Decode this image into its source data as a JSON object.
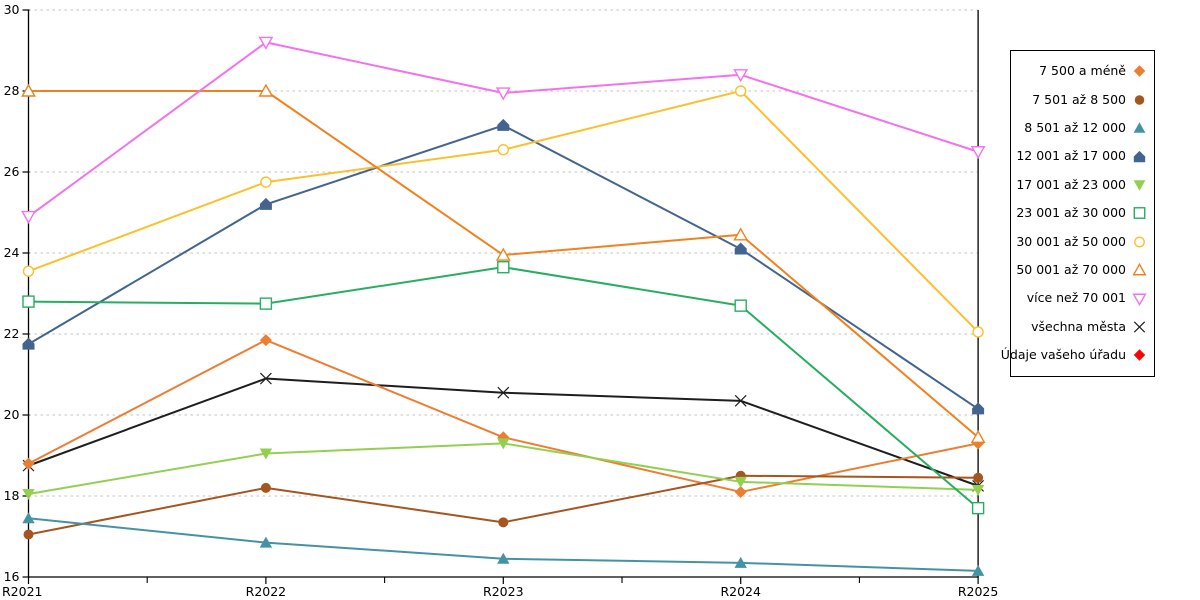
{
  "chart_data": {
    "type": "line",
    "title": "",
    "xlabel": "",
    "ylabel": "",
    "x_categories": [
      "R2021",
      "R2022",
      "R2023",
      "R2024",
      "R2025"
    ],
    "y_axis": {
      "min": 16,
      "max": 30,
      "tick_step": 2,
      "tick_labels": [
        "16",
        "18",
        "20",
        "22",
        "24",
        "26",
        "28",
        "30"
      ]
    },
    "grid": {
      "horizontal": true,
      "style": "dashed",
      "color": "#c3c3c3"
    },
    "axis_color": "#000000",
    "legend": {
      "position": "right",
      "border_color": "#000000",
      "background": "#ffffff"
    },
    "series": [
      {
        "name": "7 500 a méně",
        "color": "#ED7D31",
        "marker": "diamond",
        "marker_style": "filled",
        "values": [
          18.8,
          21.85,
          19.45,
          18.1,
          19.3
        ]
      },
      {
        "name": "7 501 až 8 500",
        "color": "#A5561E",
        "marker": "circle",
        "marker_style": "filled",
        "values": [
          17.05,
          18.2,
          17.35,
          18.5,
          18.45
        ]
      },
      {
        "name": "8 501 až 12 000",
        "color": "#4493A5",
        "marker": "triangle-up",
        "marker_style": "filled",
        "values": [
          17.45,
          16.85,
          16.45,
          16.35,
          16.15
        ]
      },
      {
        "name": "12 001 až 17 000",
        "color": "#42648F",
        "marker": "pentagon",
        "marker_style": "filled",
        "values": [
          21.75,
          25.2,
          27.15,
          24.1,
          20.15
        ]
      },
      {
        "name": "17 001 až 23 000",
        "color": "#92D050",
        "marker": "triangle-down",
        "marker_style": "filled",
        "values": [
          18.05,
          19.05,
          19.3,
          18.35,
          18.15
        ]
      },
      {
        "name": "23 001 až 30 000",
        "color": "#27AE60",
        "marker": "square",
        "marker_style": "open",
        "values": [
          22.8,
          22.75,
          23.65,
          22.7,
          17.7
        ]
      },
      {
        "name": "30 001 až 50 000",
        "color": "#FBC02D",
        "marker": "circle",
        "marker_style": "open",
        "values": [
          23.55,
          25.75,
          26.55,
          28.0,
          22.05
        ]
      },
      {
        "name": "50 001 až 70 000",
        "color": "#F0821E",
        "marker": "triangle-up",
        "marker_style": "open",
        "values": [
          28.0,
          28.0,
          23.95,
          24.45,
          19.45
        ]
      },
      {
        "name": "více než 70 001",
        "color": "#F272EC",
        "marker": "triangle-down",
        "marker_style": "open",
        "values": [
          24.9,
          29.2,
          27.95,
          28.4,
          26.5
        ]
      },
      {
        "name": "všechna města",
        "color": "#1E1E1E",
        "marker": "x",
        "marker_style": "line",
        "values": [
          18.75,
          20.9,
          20.55,
          20.35,
          18.25
        ]
      },
      {
        "name": "Údaje vašeho úřadu",
        "color": "#FF0000",
        "marker": "diamond",
        "marker_style": "filled",
        "values": []
      }
    ]
  }
}
